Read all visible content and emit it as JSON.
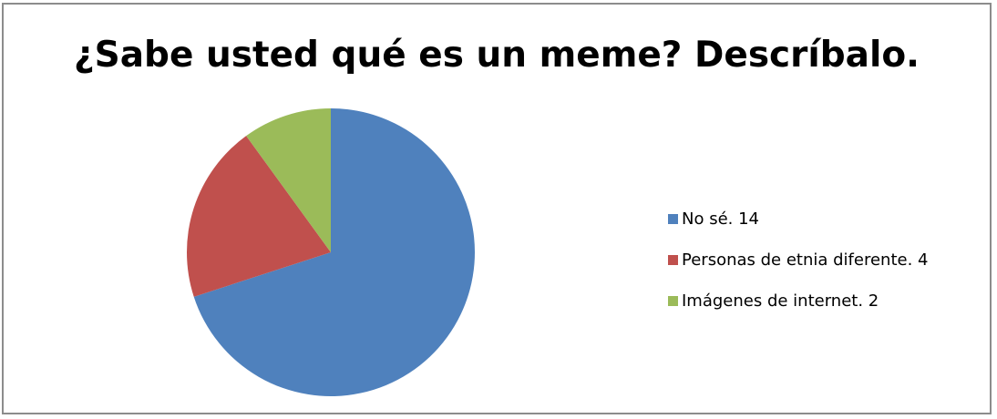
{
  "chart_data": {
    "type": "pie",
    "title": "¿Sabe usted qué es un meme? Descríbalo.",
    "categories": [
      "No sé. 14",
      "Personas de etnia diferente. 4",
      "Imágenes de internet. 2"
    ],
    "values": [
      14,
      4,
      2
    ],
    "colors": [
      "#4f81bd",
      "#c0504d",
      "#9bbb59"
    ],
    "legend_position": "right"
  }
}
